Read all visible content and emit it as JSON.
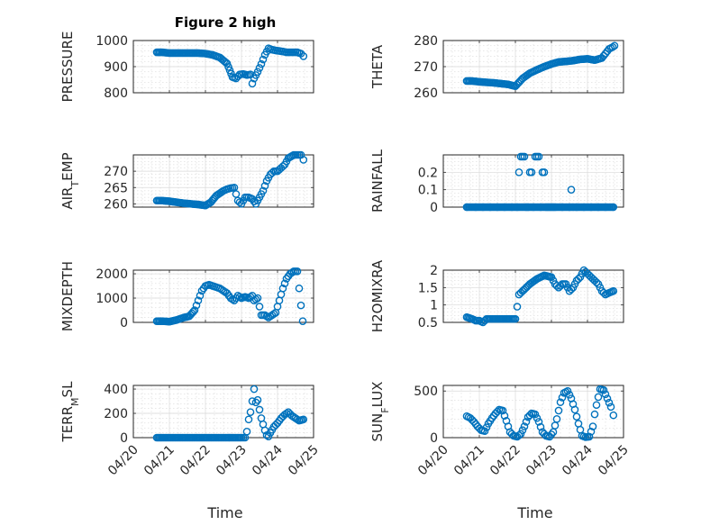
{
  "figure_title": "Figure 2 high",
  "colors": {
    "marker": "#0072BD",
    "axis": "#262626"
  },
  "chart_data": [
    {
      "type": "scatter",
      "id": "pressure",
      "ylabel": "PRESSURE",
      "xticks": [
        "04/20",
        "04/21",
        "04/22",
        "04/23",
        "04/24",
        "04/25"
      ],
      "yticks": [
        800,
        900,
        1000
      ],
      "ylim": [
        800,
        1000
      ],
      "xlim": [
        0,
        5
      ],
      "grid": true,
      "x": [
        0.65,
        0.8,
        1.0,
        1.2,
        1.4,
        1.6,
        1.8,
        2.0,
        2.2,
        2.4,
        2.6,
        2.75,
        2.85,
        2.95,
        3.05,
        3.15,
        3.25,
        3.3,
        3.35,
        3.45,
        3.55,
        3.65,
        3.75,
        3.85,
        3.95,
        4.05,
        4.15,
        4.25,
        4.35,
        4.45,
        4.55,
        4.65,
        4.72
      ],
      "y": [
        955,
        955,
        952,
        952,
        952,
        952,
        952,
        950,
        945,
        935,
        912,
        860,
        855,
        870,
        872,
        868,
        870,
        835,
        855,
        880,
        910,
        945,
        970,
        965,
        962,
        960,
        958,
        955,
        955,
        955,
        955,
        950,
        940
      ]
    },
    {
      "type": "scatter",
      "id": "theta",
      "ylabel": "THETA",
      "xticks": [
        "04/20",
        "04/21",
        "04/22",
        "04/23",
        "04/24",
        "04/25"
      ],
      "yticks": [
        260,
        270,
        280
      ],
      "ylim": [
        260,
        280
      ],
      "xlim": [
        0,
        5
      ],
      "grid": true,
      "x": [
        0.65,
        0.8,
        1.0,
        1.2,
        1.4,
        1.6,
        1.8,
        2.0,
        2.2,
        2.4,
        2.6,
        2.8,
        3.0,
        3.2,
        3.4,
        3.6,
        3.8,
        4.0,
        4.2,
        4.4,
        4.5,
        4.6,
        4.7,
        4.75
      ],
      "y": [
        264.5,
        264.5,
        264.2,
        264.0,
        263.8,
        263.5,
        263.2,
        262.5,
        265.5,
        267.5,
        268.8,
        270.0,
        271.0,
        271.8,
        272.0,
        272.3,
        272.8,
        273.0,
        272.5,
        273.3,
        275.0,
        276.8,
        277.5,
        278.0
      ]
    },
    {
      "type": "scatter",
      "id": "air_temp",
      "ylabel": "AIR",
      "ylabel_sub": "T",
      "ylabel_rest": "EMP",
      "xticks": [
        "04/20",
        "04/21",
        "04/22",
        "04/23",
        "04/24",
        "04/25"
      ],
      "yticks": [
        260,
        265,
        270
      ],
      "ylim": [
        259,
        275
      ],
      "xlim": [
        0,
        5
      ],
      "grid": true,
      "x": [
        0.65,
        0.8,
        1.0,
        1.2,
        1.4,
        1.6,
        1.8,
        2.0,
        2.15,
        2.3,
        2.5,
        2.6,
        2.7,
        2.8,
        2.9,
        3.0,
        3.1,
        3.2,
        3.3,
        3.4,
        3.5,
        3.6,
        3.7,
        3.8,
        3.9,
        4.0,
        4.1,
        4.2,
        4.3,
        4.45,
        4.55,
        4.65,
        4.72
      ],
      "y": [
        261,
        261,
        260.8,
        260.5,
        260.2,
        260,
        259.8,
        259.5,
        260.5,
        262.5,
        264,
        264.5,
        264.8,
        265,
        261,
        260,
        262,
        262,
        261.5,
        260,
        262,
        264,
        267,
        269,
        270,
        270,
        271,
        272,
        274,
        275,
        275,
        275,
        273.5
      ]
    },
    {
      "type": "scatter",
      "id": "rainfall",
      "ylabel": "RAINFALL",
      "xticks": [
        "04/20",
        "04/21",
        "04/22",
        "04/23",
        "04/24",
        "04/25"
      ],
      "yticks": [
        0,
        0.1,
        0.2
      ],
      "ylim": [
        0,
        0.3
      ],
      "xlim": [
        0,
        5
      ],
      "grid": true,
      "x": [
        0.65,
        0.9,
        1.1,
        1.3,
        1.5,
        1.7,
        1.9,
        2.05,
        2.1,
        2.15,
        2.2,
        2.25,
        2.3,
        2.35,
        2.4,
        2.45,
        2.5,
        2.55,
        2.6,
        2.65,
        2.7,
        2.75,
        2.8,
        2.85,
        2.9,
        2.95,
        3.0,
        3.05,
        3.1,
        3.3,
        3.5,
        3.55,
        3.7,
        3.9,
        4.1,
        4.3,
        4.5,
        4.72
      ],
      "y": [
        0,
        0,
        0,
        0,
        0,
        0,
        0,
        0,
        0.2,
        0.29,
        0.29,
        0.29,
        0,
        0,
        0.2,
        0.2,
        0,
        0.29,
        0.29,
        0.29,
        0,
        0.2,
        0.2,
        0,
        0,
        0,
        0,
        0,
        0,
        0,
        0,
        0.1,
        0,
        0,
        0,
        0,
        0,
        0
      ]
    },
    {
      "type": "scatter",
      "id": "mixdepth",
      "ylabel": "MIXDEPTH",
      "xticks": [
        "04/20",
        "04/21",
        "04/22",
        "04/23",
        "04/24",
        "04/25"
      ],
      "yticks": [
        0,
        1000,
        2000
      ],
      "ylim": [
        0,
        2150
      ],
      "xlim": [
        0,
        5
      ],
      "grid": true,
      "x": [
        0.65,
        0.8,
        1.0,
        1.2,
        1.4,
        1.55,
        1.7,
        1.8,
        1.9,
        2.0,
        2.1,
        2.2,
        2.3,
        2.4,
        2.5,
        2.6,
        2.7,
        2.8,
        2.9,
        3.0,
        3.1,
        3.2,
        3.3,
        3.35,
        3.45,
        3.55,
        3.65,
        3.75,
        3.85,
        3.95,
        4.05,
        4.15,
        4.25,
        4.35,
        4.45,
        4.55,
        4.6,
        4.65,
        4.7
      ],
      "y": [
        50,
        50,
        30,
        100,
        200,
        250,
        500,
        900,
        1300,
        1500,
        1550,
        1500,
        1450,
        1400,
        1300,
        1200,
        1000,
        900,
        1100,
        1000,
        1050,
        1000,
        1100,
        900,
        1000,
        300,
        300,
        200,
        300,
        400,
        900,
        1400,
        1800,
        2000,
        2100,
        2100,
        1400,
        700,
        50
      ]
    },
    {
      "type": "scatter",
      "id": "h2omixra",
      "ylabel": "H2OMIXRA",
      "xticks": [
        "04/20",
        "04/21",
        "04/22",
        "04/23",
        "04/24",
        "04/25"
      ],
      "yticks": [
        0.5,
        1,
        1.5,
        2
      ],
      "ylim": [
        0.5,
        2.0
      ],
      "xlim": [
        0,
        5
      ],
      "grid": true,
      "x": [
        0.65,
        0.8,
        0.9,
        1.0,
        1.1,
        1.2,
        1.4,
        1.6,
        1.8,
        2.0,
        2.1,
        2.2,
        2.4,
        2.6,
        2.8,
        3.0,
        3.1,
        3.2,
        3.3,
        3.4,
        3.5,
        3.6,
        3.7,
        3.8,
        3.9,
        4.0,
        4.1,
        4.2,
        4.3,
        4.4,
        4.5,
        4.6,
        4.72
      ],
      "y": [
        0.65,
        0.6,
        0.55,
        0.55,
        0.5,
        0.6,
        0.6,
        0.6,
        0.6,
        0.6,
        1.3,
        1.4,
        1.6,
        1.75,
        1.85,
        1.8,
        1.6,
        1.5,
        1.6,
        1.6,
        1.4,
        1.5,
        1.7,
        1.8,
        2.0,
        1.9,
        1.8,
        1.7,
        1.6,
        1.4,
        1.3,
        1.35,
        1.4
      ]
    },
    {
      "type": "scatter",
      "id": "terr_msl",
      "ylabel": "TERR",
      "ylabel_sub": "M",
      "ylabel_rest": "SL",
      "xticks": [
        "04/20",
        "04/21",
        "04/22",
        "04/23",
        "04/24",
        "04/25"
      ],
      "yticks": [
        0,
        200,
        400
      ],
      "ylim": [
        0,
        430
      ],
      "xlim": [
        0,
        5
      ],
      "grid": true,
      "x": [
        0.65,
        0.8,
        1.0,
        1.2,
        1.4,
        1.6,
        1.8,
        2.0,
        2.2,
        2.4,
        2.6,
        2.8,
        3.0,
        3.1,
        3.15,
        3.2,
        3.25,
        3.3,
        3.35,
        3.4,
        3.45,
        3.5,
        3.55,
        3.6,
        3.65,
        3.7,
        3.75,
        3.8,
        3.9,
        4.0,
        4.1,
        4.2,
        4.3,
        4.4,
        4.5,
        4.6,
        4.72
      ],
      "y": [
        0,
        0,
        0,
        0,
        0,
        0,
        0,
        0,
        0,
        0,
        0,
        0,
        0,
        0,
        50,
        150,
        210,
        300,
        400,
        290,
        310,
        230,
        160,
        110,
        60,
        20,
        10,
        40,
        90,
        120,
        160,
        190,
        210,
        180,
        160,
        140,
        150
      ]
    },
    {
      "type": "scatter",
      "id": "sun_flux",
      "ylabel": "SUN",
      "ylabel_sub": "F",
      "ylabel_rest": "LUX",
      "xticks": [
        "04/20",
        "04/21",
        "04/22",
        "04/23",
        "04/24",
        "04/25"
      ],
      "yticks": [
        0,
        500
      ],
      "ylim": [
        0,
        560
      ],
      "xlim": [
        0,
        5
      ],
      "grid": true,
      "x": [
        0.65,
        0.75,
        0.85,
        0.95,
        1.05,
        1.15,
        1.25,
        1.35,
        1.45,
        1.55,
        1.65,
        1.75,
        1.85,
        1.95,
        2.05,
        2.15,
        2.25,
        2.35,
        2.45,
        2.55,
        2.65,
        2.75,
        2.85,
        2.95,
        3.05,
        3.15,
        3.25,
        3.35,
        3.45,
        3.55,
        3.65,
        3.75,
        3.85,
        3.95,
        4.05,
        4.15,
        4.2,
        4.25,
        4.35,
        4.45,
        4.55,
        4.65,
        4.72
      ],
      "y": [
        230,
        210,
        170,
        120,
        80,
        70,
        150,
        210,
        260,
        300,
        290,
        180,
        60,
        20,
        10,
        40,
        120,
        220,
        260,
        250,
        170,
        60,
        20,
        10,
        60,
        200,
        380,
        480,
        500,
        420,
        300,
        150,
        20,
        5,
        10,
        120,
        250,
        350,
        520,
        510,
        420,
        330,
        240
      ]
    }
  ],
  "xlabel": "Time"
}
